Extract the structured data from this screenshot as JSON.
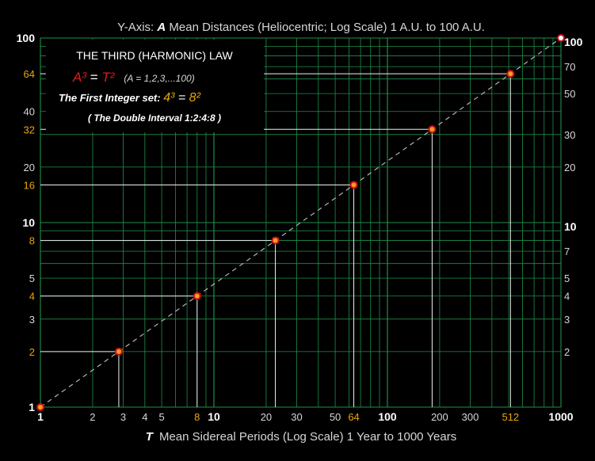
{
  "chart_data": {
    "type": "scatter",
    "title": {
      "prefix": "Y-Axis: ",
      "symbol": "A",
      "text": " Mean Distances (Heliocentric; Log Scale) 1 A.U. to 100 A.U."
    },
    "xlabel": {
      "symbol": "T",
      "text": "Mean Sidereal Periods (Log Scale) 1 Year to 1000 Years"
    },
    "x_scale": "log",
    "y_scale": "log",
    "xlim": [
      1,
      1000
    ],
    "ylim": [
      1,
      100
    ],
    "grid": true,
    "x_ticks_bold": [
      "1",
      "10",
      "100",
      "1000"
    ],
    "x_ticks_plain": [
      "2",
      "3",
      "4",
      "5",
      "20",
      "30",
      "50",
      "200",
      "300"
    ],
    "x_ticks_gold": [
      "8",
      "64",
      "512"
    ],
    "y_ticks_left_bold": [
      "100",
      "10",
      "1"
    ],
    "y_ticks_left_plain": [
      "40",
      "20",
      "5",
      "3"
    ],
    "y_ticks_left_gold": [
      "64",
      "32",
      "16",
      "8",
      "4",
      "2"
    ],
    "y_ticks_right_bold": [
      "100",
      "10"
    ],
    "y_ticks_right_plain": [
      "70",
      "50",
      "30",
      "20",
      "7",
      "5",
      "4",
      "3",
      "2"
    ],
    "points": [
      {
        "x": 1,
        "y": 1
      },
      {
        "x": 2.83,
        "y": 2
      },
      {
        "x": 8,
        "y": 4
      },
      {
        "x": 22.6,
        "y": 8
      },
      {
        "x": 64,
        "y": 16
      },
      {
        "x": 181,
        "y": 32
      },
      {
        "x": 512,
        "y": 64
      },
      {
        "x": 1000,
        "y": 100
      }
    ],
    "series_line": {
      "from": [
        1,
        1
      ],
      "to": [
        1000,
        100
      ],
      "style": "dashed"
    },
    "colors": {
      "background": "#000000",
      "grid": "#1f8f4a",
      "gold": "#e8a50b",
      "red": "#e0191b",
      "marker_fill": "#ff9a1a",
      "marker_edge": "#c8101a",
      "guide": "#f0f0f0",
      "dashed_line": "#b4b4b4",
      "text": "#ffffff",
      "muted_text": "#d6d6d6"
    }
  },
  "legend_box": {
    "heading": "THE THIRD (HARMONIC) LAW",
    "formula_a": "A³",
    "formula_eq": " = ",
    "formula_t": "T²",
    "formula_note": "(A = 1,2,3,...100)",
    "integer_label": "The First Integer set: ",
    "integer_a": "4³",
    "integer_eq": " = ",
    "integer_b": "8²",
    "interval": "( The Double Interval 1:2:4:8 )"
  }
}
